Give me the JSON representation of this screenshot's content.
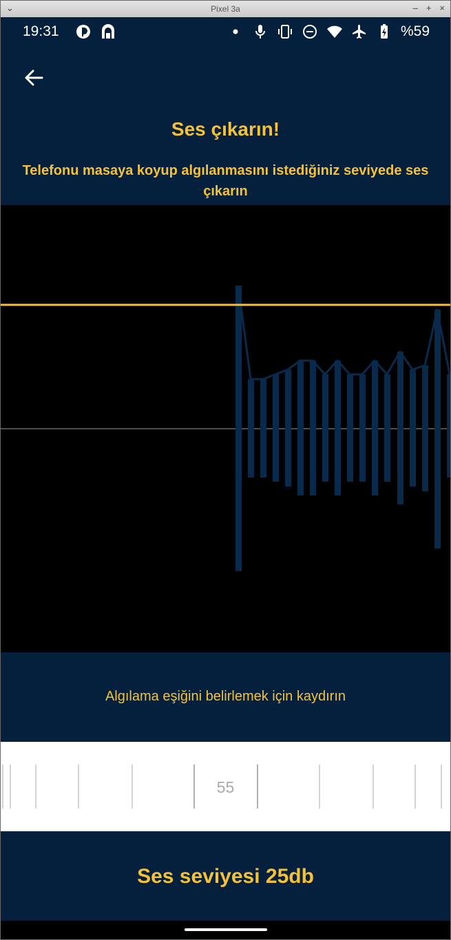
{
  "window": {
    "title": "Pixel 3a"
  },
  "status_bar": {
    "time": "19:31",
    "battery": "%59",
    "left_icons": [
      "data-saver-icon",
      "lock-arch-icon"
    ],
    "right_icons": [
      "dot-icon",
      "mic-icon",
      "vibrate-icon",
      "dnd-icon",
      "wifi-icon",
      "airplane-icon",
      "battery-charging-icon"
    ]
  },
  "header": {
    "back_icon": "arrow-left-icon",
    "title": "Ses çıkarın!",
    "subtitle": "Telefonu masaya koyup algılanmasını istediğiniz seviyede ses çıkarın"
  },
  "colors": {
    "background": "#05203d",
    "accent": "#f4c23a",
    "graph_background": "#000000",
    "bar": "#0a2a4c"
  },
  "threshold": {
    "hint": "Algılama eşiğini belirlemek için kaydırın",
    "value": "55"
  },
  "sound_level": {
    "label": "Ses seviyesi 25db"
  }
}
